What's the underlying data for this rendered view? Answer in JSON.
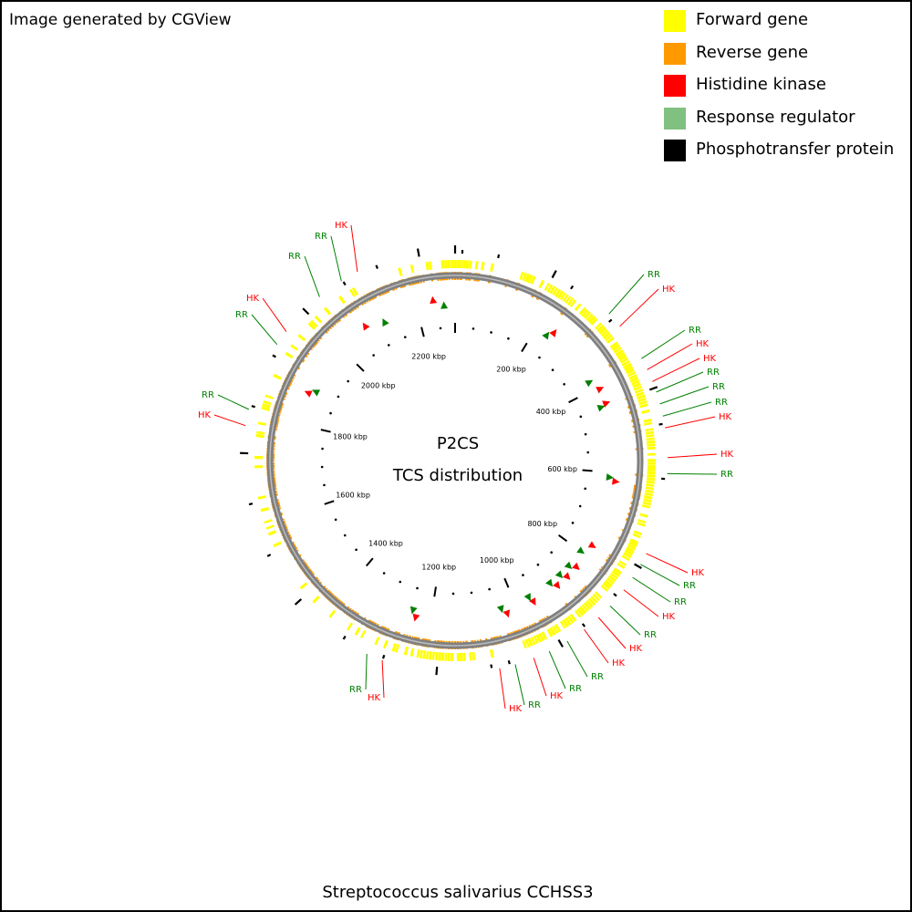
{
  "credit": "Image generated by CGView",
  "organism": "Streptococcus salivarius CCHSS3",
  "center": {
    "line1": "P2CS",
    "line2": "TCS distribution"
  },
  "legend": [
    {
      "label": "Forward gene",
      "color": "#ffff00"
    },
    {
      "label": "Reverse gene",
      "color": "#ff9900"
    },
    {
      "label": "Histidine kinase",
      "color": "#ff0000"
    },
    {
      "label": "Response regulator",
      "color": "#80c080"
    },
    {
      "label": "Phosphotransfer protein",
      "color": "#000000"
    }
  ],
  "map": {
    "genome_length_kbp": 2290,
    "backbone_color": "#808080",
    "tick_labels": [
      "200 kbp",
      "400 kbp",
      "600 kbp",
      "800 kbp",
      "1000 kbp",
      "1200 kbp",
      "1400 kbp",
      "1600 kbp",
      "1800 kbp",
      "2000 kbp",
      "2200 kbp"
    ],
    "hk_color": "#ff0000",
    "rr_color": "#008000",
    "feature_markers": [
      {
        "type": "RR",
        "kbp": 2264
      },
      {
        "type": "HK",
        "kbp": 2240
      },
      {
        "type": "RR",
        "kbp": 2118
      },
      {
        "type": "HK",
        "kbp": 2075
      },
      {
        "type": "RR",
        "kbp": 1885
      },
      {
        "type": "HK",
        "kbp": 1875
      },
      {
        "type": "HK",
        "kbp": 240
      },
      {
        "type": "RR",
        "kbp": 230
      },
      {
        "type": "HK",
        "kbp": 405
      },
      {
        "type": "RR",
        "kbp": 380
      },
      {
        "type": "HK",
        "kbp": 440
      },
      {
        "type": "RR",
        "kbp": 445
      },
      {
        "type": "HK",
        "kbp": 620
      },
      {
        "type": "RR",
        "kbp": 612
      },
      {
        "type": "HK",
        "kbp": 775
      },
      {
        "type": "RR",
        "kbp": 800
      },
      {
        "type": "HK",
        "kbp": 835
      },
      {
        "type": "RR",
        "kbp": 845
      },
      {
        "type": "HK",
        "kbp": 865
      },
      {
        "type": "RR",
        "kbp": 875
      },
      {
        "type": "HK",
        "kbp": 895
      },
      {
        "type": "RR",
        "kbp": 905
      },
      {
        "type": "HK",
        "kbp": 960
      },
      {
        "type": "RR",
        "kbp": 965
      },
      {
        "type": "HK",
        "kbp": 1025
      },
      {
        "type": "RR",
        "kbp": 1035
      },
      {
        "type": "HK",
        "kbp": 1235
      },
      {
        "type": "RR",
        "kbp": 1245
      }
    ],
    "callouts": [
      {
        "label": "HK",
        "type": "HK",
        "label_pos": [
          365,
          248
        ]
      },
      {
        "label": "RR",
        "type": "RR",
        "label_pos": [
          343,
          260
        ]
      },
      {
        "label": "RR",
        "type": "RR",
        "label_pos": [
          314,
          282
        ]
      },
      {
        "label": "HK",
        "type": "HK",
        "label_pos": [
          268,
          328
        ]
      },
      {
        "label": "RR",
        "type": "RR",
        "label_pos": [
          256,
          346
        ]
      },
      {
        "label": "RR",
        "type": "RR",
        "label_pos": [
          219,
          434
        ]
      },
      {
        "label": "HK",
        "type": "HK",
        "label_pos": [
          215,
          456
        ]
      },
      {
        "label": "RR",
        "type": "RR",
        "label_pos": [
          708,
          302
        ]
      },
      {
        "label": "HK",
        "type": "HK",
        "label_pos": [
          724,
          318
        ]
      },
      {
        "label": "RR",
        "type": "RR",
        "label_pos": [
          753,
          363
        ]
      },
      {
        "label": "HK",
        "type": "HK",
        "label_pos": [
          761,
          378
        ]
      },
      {
        "label": "HK",
        "type": "HK",
        "label_pos": [
          769,
          394
        ]
      },
      {
        "label": "RR",
        "type": "RR",
        "label_pos": [
          773,
          409
        ]
      },
      {
        "label": "RR",
        "type": "RR",
        "label_pos": [
          779,
          425
        ]
      },
      {
        "label": "RR",
        "type": "RR",
        "label_pos": [
          782,
          442
        ]
      },
      {
        "label": "HK",
        "type": "HK",
        "label_pos": [
          786,
          458
        ]
      },
      {
        "label": "HK",
        "type": "HK",
        "label_pos": [
          788,
          499
        ]
      },
      {
        "label": "RR",
        "type": "RR",
        "label_pos": [
          788,
          521
        ]
      },
      {
        "label": "HK",
        "type": "HK",
        "label_pos": [
          756,
          629
        ]
      },
      {
        "label": "RR",
        "type": "RR",
        "label_pos": [
          747,
          643
        ]
      },
      {
        "label": "RR",
        "type": "RR",
        "label_pos": [
          737,
          661
        ]
      },
      {
        "label": "HK",
        "type": "HK",
        "label_pos": [
          724,
          677
        ]
      },
      {
        "label": "RR",
        "type": "RR",
        "label_pos": [
          704,
          697
        ]
      },
      {
        "label": "HK",
        "type": "HK",
        "label_pos": [
          688,
          712
        ]
      },
      {
        "label": "HK",
        "type": "HK",
        "label_pos": [
          669,
          728
        ]
      },
      {
        "label": "RR",
        "type": "RR",
        "label_pos": [
          646,
          743
        ]
      },
      {
        "label": "RR",
        "type": "RR",
        "label_pos": [
          622,
          756
        ]
      },
      {
        "label": "HK",
        "type": "HK",
        "label_pos": [
          601,
          764
        ]
      },
      {
        "label": "RR",
        "type": "RR",
        "label_pos": [
          577,
          774
        ]
      },
      {
        "label": "HK",
        "type": "HK",
        "label_pos": [
          556,
          778
        ]
      },
      {
        "label": "RR",
        "type": "RR",
        "label_pos": [
          381,
          757
        ]
      },
      {
        "label": "HK",
        "type": "HK",
        "label_pos": [
          401,
          766
        ]
      }
    ]
  }
}
